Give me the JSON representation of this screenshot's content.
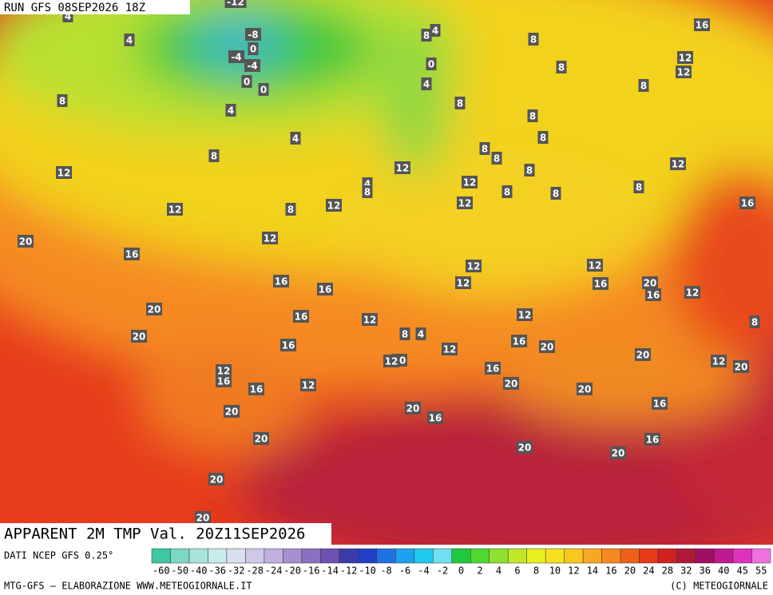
{
  "header": {
    "run": "RUN GFS 08SEP2026 18Z"
  },
  "title": "APPARENT 2M TMP Val. 20Z11SEP2026",
  "footer": {
    "source": "DATI NCEP GFS 0.25°",
    "credit": "MTG-GFS — ELABORAZIONE WWW.METEOGIORNALE.IT",
    "copyright": "(C) METEOGIORNALE"
  },
  "colorbar": {
    "labels": [
      "-60",
      "-50",
      "-40",
      "-36",
      "-32",
      "-28",
      "-24",
      "-20",
      "-16",
      "-14",
      "-12",
      "-10",
      "-8",
      "-6",
      "-4",
      "-2",
      "0",
      "2",
      "4",
      "6",
      "8",
      "10",
      "12",
      "14",
      "16",
      "20",
      "24",
      "28",
      "32",
      "36",
      "40",
      "45",
      "55"
    ],
    "colors": [
      "#3cc8a0",
      "#7cd8c0",
      "#a8e4d8",
      "#c8ecec",
      "#d8e0f0",
      "#d0c8e8",
      "#c0b0e0",
      "#a890d0",
      "#8c70c0",
      "#7050b0",
      "#3c3ca8",
      "#2040c8",
      "#2070e0",
      "#20a0f0",
      "#20c8f0",
      "#70e0f0",
      "#20c840",
      "#50d830",
      "#90e030",
      "#c0e828",
      "#e8f020",
      "#f8e020",
      "#f8c820",
      "#f8a820",
      "#f88820",
      "#f06018",
      "#e83818",
      "#d02020",
      "#b01838",
      "#a01060",
      "#c01890",
      "#e030c0",
      "#f070e0"
    ]
  },
  "map_labels": [
    "-12",
    "4",
    "4",
    "-8",
    "0",
    "-4",
    "-4",
    "0",
    "0",
    "8",
    "4",
    "4",
    "8",
    "12",
    "12",
    "8",
    "12",
    "12",
    "20",
    "16",
    "16",
    "16",
    "20",
    "16",
    "20",
    "16",
    "12",
    "12",
    "16",
    "16",
    "12",
    "20",
    "20",
    "20",
    "20",
    "16",
    "20",
    "20",
    "16",
    "16",
    "20",
    "20",
    "16",
    "12",
    "16",
    "20",
    "12",
    "12",
    "12",
    "12",
    "16",
    "20",
    "16",
    "12",
    "20",
    "12",
    "20",
    "16",
    "12",
    "8",
    "8",
    "8",
    "12",
    "12",
    "8",
    "8",
    "8",
    "8",
    "8",
    "8",
    "4",
    "0",
    "8",
    "4",
    "8",
    "8",
    "8",
    "12",
    "12",
    "16",
    "12",
    "4",
    "8",
    "20",
    "20",
    "8",
    "4",
    "8",
    "12"
  ]
}
